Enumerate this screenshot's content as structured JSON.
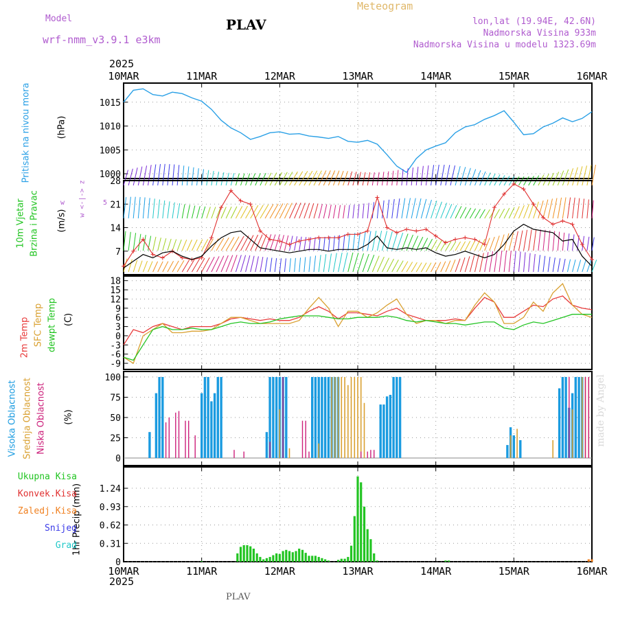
{
  "header": {
    "model_label": "Model",
    "model_name": "wrf-nmm_v3.9.1  e3km",
    "station": "PLAV",
    "product": "Meteogram",
    "lonlat": "lon,lat (19.94E, 42.6N)",
    "elevation": "Nadmorska Visina 933m",
    "model_elevation": "Nadmorska Visina u modelu 1323.69m",
    "year_top": "2025",
    "year_bottom": "2025",
    "footer_station": "PLAV",
    "watermark": "made by Angel"
  },
  "colors": {
    "pressure": "#2aa0e6",
    "wind_speed": "#000000",
    "gust": "#e03030",
    "temp2m": "#e83a3a",
    "sfc": "#d9a030",
    "dewpt": "#22c422",
    "high_cloud": "#1a9be0",
    "mid_cloud": "#d9a030",
    "low_cloud": "#cc1f7a",
    "precip_total": "#22c422",
    "precip_conv": "#e03030",
    "precip_frz": "#f08020",
    "snow": "#3a3ae8",
    "hail": "#20c8c8",
    "purple": "#b05ccf"
  },
  "chart_data": [
    {
      "type": "line",
      "name": "pressure",
      "title": "Pritisak na nivou mora",
      "ylabel": "(hPa)",
      "x_labels": [
        "10MAR",
        "11MAR",
        "12MAR",
        "13MAR",
        "14MAR",
        "15MAR",
        "16MAR"
      ],
      "ylim": [
        999,
        1019
      ],
      "yticks": [
        1000,
        1005,
        1010,
        1015
      ],
      "x_hours": [
        0,
        3,
        6,
        9,
        12,
        15,
        18,
        21,
        24,
        27,
        30,
        33,
        36,
        39,
        42,
        45,
        48,
        51,
        54,
        57,
        60,
        63,
        66,
        69,
        72,
        75,
        78,
        81,
        84,
        87,
        90,
        93,
        96,
        99,
        102,
        105,
        108,
        111,
        114,
        117,
        120,
        123,
        126,
        129,
        132,
        135,
        138,
        141,
        144
      ],
      "values": [
        1015,
        1017.5,
        1017.8,
        1016.6,
        1016.3,
        1017.1,
        1016.8,
        1015.9,
        1015.2,
        1013.5,
        1011.2,
        1009.6,
        1008.6,
        1007.2,
        1007.8,
        1008.6,
        1008.8,
        1008.3,
        1008.4,
        1007.9,
        1007.7,
        1007.4,
        1007.8,
        1006.8,
        1006.6,
        1007.0,
        1006.2,
        1004.0,
        1001.6,
        1000.3,
        1003.2,
        1005.0,
        1005.8,
        1006.5,
        1008.6,
        1009.8,
        1010.3,
        1011.4,
        1012.2,
        1013.2,
        1010.8,
        1008.2,
        1008.4,
        1009.8,
        1010.6,
        1011.7,
        1010.9,
        1011.6,
        1013.0
      ]
    },
    {
      "type": "line",
      "name": "wind",
      "title": "10m Vjetar Brzina i Pravac",
      "ylabel": "(m/s)",
      "compass_label": "w <-|-> z",
      "ylim": [
        0,
        28
      ],
      "yticks": [
        7,
        14,
        21,
        28
      ],
      "x_hours": [
        0,
        3,
        6,
        9,
        12,
        15,
        18,
        21,
        24,
        27,
        30,
        33,
        36,
        39,
        42,
        45,
        48,
        51,
        54,
        57,
        60,
        63,
        66,
        69,
        72,
        75,
        78,
        81,
        84,
        87,
        90,
        93,
        96,
        99,
        102,
        105,
        108,
        111,
        114,
        117,
        120,
        123,
        126,
        129,
        132,
        135,
        138,
        141,
        144
      ],
      "series": [
        {
          "name": "speed",
          "values": [
            2,
            4,
            6,
            5,
            6.5,
            7,
            5.5,
            4.5,
            5.5,
            8.5,
            11,
            12.5,
            13,
            10.5,
            8,
            7.5,
            7,
            6.5,
            7,
            7.5,
            7.5,
            7,
            7.5,
            7.5,
            7.5,
            9,
            11.5,
            8,
            7.5,
            8,
            7.5,
            8,
            6.5,
            5.5,
            6,
            7,
            6,
            5,
            6,
            9,
            13,
            15,
            13.5,
            13,
            12.5,
            10,
            10.5,
            5.5,
            2.5
          ]
        },
        {
          "name": "gust",
          "values": [
            2.5,
            7,
            10.5,
            6,
            5,
            7,
            5,
            4.5,
            5,
            11,
            20,
            25,
            22,
            21,
            13,
            10.5,
            10,
            9,
            10,
            10.5,
            11,
            11,
            11,
            12,
            12,
            13,
            23,
            14,
            12.5,
            13.5,
            13,
            13.5,
            11.5,
            9.5,
            10.5,
            11,
            10.5,
            9,
            20,
            24,
            27,
            25.5,
            21,
            17,
            15,
            16,
            15,
            9,
            4.5
          ]
        }
      ]
    },
    {
      "type": "line",
      "name": "temperature",
      "title": "2m Temp / SFC Temp / dewpt Temp",
      "ylabel": "(C)",
      "ylim": [
        -11,
        19.5
      ],
      "yticks": [
        -9,
        -6,
        -3,
        0,
        3,
        6,
        9,
        12,
        15,
        18
      ],
      "x_hours": [
        0,
        3,
        6,
        9,
        12,
        15,
        18,
        21,
        24,
        27,
        30,
        33,
        36,
        39,
        42,
        45,
        48,
        51,
        54,
        57,
        60,
        63,
        66,
        69,
        72,
        75,
        78,
        81,
        84,
        87,
        90,
        93,
        96,
        99,
        102,
        105,
        108,
        111,
        114,
        117,
        120,
        123,
        126,
        129,
        132,
        135,
        138,
        141,
        144
      ],
      "series": [
        {
          "name": "2m Temp",
          "values": [
            -3,
            2,
            1,
            3,
            4,
            3,
            2,
            3,
            3,
            3,
            4,
            5.5,
            6,
            5.5,
            5,
            5.5,
            5,
            5,
            6,
            8,
            9.5,
            8,
            5.5,
            7.5,
            7.5,
            7,
            6.5,
            8,
            9,
            7,
            6,
            5,
            5,
            5,
            5.5,
            5,
            9,
            12.5,
            11,
            6,
            6,
            8,
            10,
            9.5,
            12,
            13,
            10,
            9,
            8.5
          ]
        },
        {
          "name": "SFC Temp",
          "values": [
            -7,
            -9,
            0,
            2,
            4,
            1,
            1,
            1.5,
            1.5,
            2,
            4,
            6,
            6,
            5,
            4,
            4,
            4,
            4,
            5,
            9,
            12.5,
            9,
            3,
            8,
            8,
            6,
            7.5,
            10,
            12,
            7,
            4,
            5,
            5,
            4,
            5,
            5,
            10,
            14,
            11,
            4,
            4,
            6,
            11,
            8,
            14,
            17,
            10,
            7,
            6
          ]
        },
        {
          "name": "dewpt Temp",
          "values": [
            -7,
            -8,
            -3,
            2,
            3,
            2,
            2,
            2.5,
            2,
            2,
            3,
            4,
            4.5,
            4,
            4,
            4.5,
            5.5,
            6,
            6.5,
            6.5,
            6.5,
            6,
            5.5,
            5.5,
            6,
            6,
            6,
            6.5,
            6,
            5,
            4.5,
            5,
            4.5,
            4,
            4,
            3.5,
            4,
            4.5,
            4.5,
            2.5,
            2,
            3.5,
            4.5,
            4,
            5,
            6,
            7,
            7,
            7
          ]
        }
      ]
    },
    {
      "type": "bar",
      "name": "cloud",
      "title": "Visoka Oblacnost / Srednja Oblacnost / Niska Oblacnost",
      "ylabel": "(%)",
      "ylim": [
        0,
        100
      ],
      "yticks": [
        0,
        25,
        50,
        75,
        100
      ],
      "series": [
        {
          "name": "Visoka Oblacnost",
          "values": [
            [
              8,
              32
            ],
            [
              10,
              80
            ],
            [
              11,
              100
            ],
            [
              12,
              100
            ],
            [
              24,
              80
            ],
            [
              25,
              100
            ],
            [
              26,
              100
            ],
            [
              27,
              70
            ],
            [
              28,
              80
            ],
            [
              29,
              100
            ],
            [
              30,
              100
            ],
            [
              44,
              32
            ],
            [
              45,
              100
            ],
            [
              46,
              100
            ],
            [
              47,
              100
            ],
            [
              48,
              100
            ],
            [
              49,
              100
            ],
            [
              50,
              100
            ],
            [
              58,
              100
            ],
            [
              59,
              100
            ],
            [
              60,
              100
            ],
            [
              61,
              100
            ],
            [
              62,
              100
            ],
            [
              63,
              100
            ],
            [
              64,
              100
            ],
            [
              65,
              100
            ],
            [
              66,
              100
            ],
            [
              79,
              66
            ],
            [
              80,
              66
            ],
            [
              81,
              76
            ],
            [
              82,
              78
            ],
            [
              83,
              100
            ],
            [
              84,
              100
            ],
            [
              85,
              100
            ],
            [
              118,
              16
            ],
            [
              119,
              38
            ],
            [
              120,
              28
            ],
            [
              122,
              22
            ],
            [
              134,
              86
            ],
            [
              135,
              100
            ],
            [
              136,
              100
            ],
            [
              137,
              62
            ],
            [
              138,
              80
            ],
            [
              139,
              100
            ],
            [
              140,
              100
            ],
            [
              141,
              100
            ]
          ]
        },
        {
          "name": "Srednja Oblacnost",
          "values": [
            [
              48,
              60
            ],
            [
              51,
              12
            ],
            [
              60,
              18
            ],
            [
              64,
              100
            ],
            [
              65,
              100
            ],
            [
              66,
              100
            ],
            [
              67,
              100
            ],
            [
              68,
              100
            ],
            [
              69,
              90
            ],
            [
              70,
              100
            ],
            [
              71,
              100
            ],
            [
              72,
              100
            ],
            [
              73,
              100
            ],
            [
              74,
              68
            ],
            [
              119,
              28
            ],
            [
              121,
              36
            ],
            [
              132,
              22
            ],
            [
              138,
              60
            ],
            [
              141,
              100
            ],
            [
              142,
              100
            ],
            [
              143,
              100
            ]
          ]
        },
        {
          "name": "Niska Oblacnost",
          "values": [
            [
              13,
              44
            ],
            [
              14,
              50
            ],
            [
              16,
              56
            ],
            [
              17,
              58
            ],
            [
              19,
              46
            ],
            [
              20,
              46
            ],
            [
              22,
              28
            ],
            [
              34,
              10
            ],
            [
              37,
              8
            ],
            [
              45,
              20
            ],
            [
              49,
              100
            ],
            [
              55,
              46
            ],
            [
              56,
              46
            ],
            [
              57,
              8
            ],
            [
              73,
              8
            ],
            [
              75,
              8
            ],
            [
              76,
              10
            ],
            [
              77,
              10
            ],
            [
              137,
              100
            ],
            [
              142,
              100
            ],
            [
              143,
              100
            ]
          ]
        }
      ]
    },
    {
      "type": "bar",
      "name": "precip",
      "title": "1hr Precip",
      "ylabel": "(mm)",
      "legend": [
        "Ukupna Kisa",
        "Konvek.Kisa",
        "Zaledj.Kisa",
        "Snijeg",
        "Grad"
      ],
      "ylim": [
        0,
        1.6
      ],
      "yticks": [
        0,
        0.31,
        0.62,
        0.93,
        1.24
      ],
      "x_labels": [
        "10MAR",
        "11MAR",
        "12MAR",
        "13MAR",
        "14MAR",
        "15MAR",
        "16MAR"
      ],
      "values": [
        [
          24,
          0.01
        ],
        [
          35,
          0.14
        ],
        [
          36,
          0.25
        ],
        [
          37,
          0.28
        ],
        [
          38,
          0.28
        ],
        [
          39,
          0.26
        ],
        [
          40,
          0.22
        ],
        [
          41,
          0.14
        ],
        [
          42,
          0.08
        ],
        [
          43,
          0.04
        ],
        [
          44,
          0.06
        ],
        [
          45,
          0.08
        ],
        [
          46,
          0.11
        ],
        [
          47,
          0.14
        ],
        [
          48,
          0.13
        ],
        [
          49,
          0.18
        ],
        [
          50,
          0.2
        ],
        [
          51,
          0.18
        ],
        [
          52,
          0.16
        ],
        [
          53,
          0.18
        ],
        [
          54,
          0.22
        ],
        [
          55,
          0.2
        ],
        [
          56,
          0.15
        ],
        [
          57,
          0.1
        ],
        [
          58,
          0.1
        ],
        [
          59,
          0.1
        ],
        [
          60,
          0.08
        ],
        [
          61,
          0.06
        ],
        [
          62,
          0.04
        ],
        [
          63,
          0.02
        ],
        [
          66,
          0.03
        ],
        [
          67,
          0.05
        ],
        [
          68,
          0.05
        ],
        [
          69,
          0.08
        ],
        [
          70,
          0.27
        ],
        [
          71,
          0.77
        ],
        [
          72,
          1.44
        ],
        [
          73,
          1.34
        ],
        [
          74,
          0.93
        ],
        [
          75,
          0.55
        ],
        [
          76,
          0.38
        ],
        [
          77,
          0.14
        ],
        [
          78,
          0.02
        ],
        [
          99,
          0.02
        ],
        [
          100,
          0.02
        ],
        [
          143,
          0.04
        ],
        [
          144,
          0.04
        ]
      ]
    }
  ]
}
